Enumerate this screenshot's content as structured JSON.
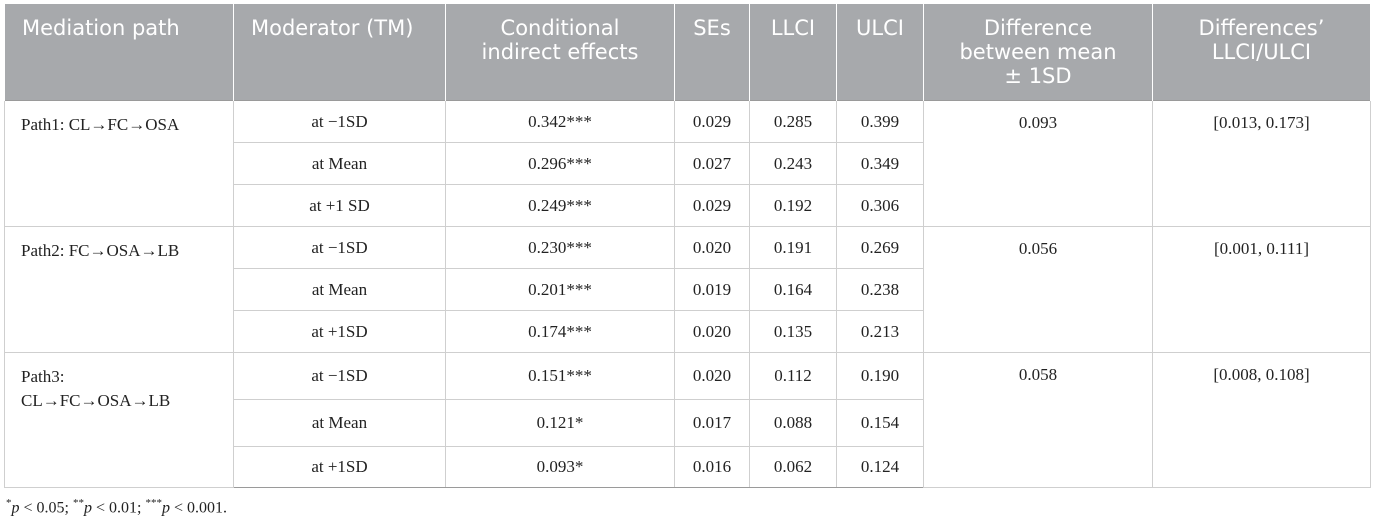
{
  "headers": {
    "mediation_path": "Mediation path",
    "moderator": "Moderator (TM)",
    "cie_line1": "Conditional",
    "cie_line2": "indirect effects",
    "ses": "SEs",
    "llci": "LLCI",
    "ulci": "ULCI",
    "diff_line1": "Difference",
    "diff_line2": "between mean",
    "diff_line3": "± 1SD",
    "dci_line1": "Differences’",
    "dci_line2": "LLCI/ULCI"
  },
  "groups": [
    {
      "path_line1": "Path1: CL→FC→OSA",
      "path_line2": "",
      "difference": "0.093",
      "diff_ci": "[0.013, 0.173]",
      "rows": [
        {
          "moderator": "at −1SD",
          "effect": "0.342***",
          "se": "0.029",
          "llci": "0.285",
          "ulci": "0.399"
        },
        {
          "moderator": "at Mean",
          "effect": "0.296***",
          "se": "0.027",
          "llci": "0.243",
          "ulci": "0.349"
        },
        {
          "moderator": "at +1 SD",
          "effect": "0.249***",
          "se": "0.029",
          "llci": "0.192",
          "ulci": "0.306"
        }
      ]
    },
    {
      "path_line1": "Path2: FC→OSA→LB",
      "path_line2": "",
      "difference": "0.056",
      "diff_ci": "[0.001, 0.111]",
      "rows": [
        {
          "moderator": "at −1SD",
          "effect": "0.230***",
          "se": "0.020",
          "llci": "0.191",
          "ulci": "0.269"
        },
        {
          "moderator": "at Mean",
          "effect": "0.201***",
          "se": "0.019",
          "llci": "0.164",
          "ulci": "0.238"
        },
        {
          "moderator": "at +1SD",
          "effect": "0.174***",
          "se": "0.020",
          "llci": "0.135",
          "ulci": "0.213"
        }
      ]
    },
    {
      "path_line1": "Path3:",
      "path_line2": "CL→FC→OSA→LB",
      "difference": "0.058",
      "diff_ci": "[0.008, 0.108]",
      "rows": [
        {
          "moderator": "at −1SD",
          "effect": "0.151***",
          "se": "0.020",
          "llci": "0.112",
          "ulci": "0.190"
        },
        {
          "moderator": "at Mean",
          "effect": "0.121*",
          "se": "0.017",
          "llci": "0.088",
          "ulci": "0.154"
        },
        {
          "moderator": "at +1SD",
          "effect": "0.093*",
          "se": "0.016",
          "llci": "0.062",
          "ulci": "0.124"
        }
      ]
    }
  ],
  "footnote": {
    "s1": "*",
    "p1": "p",
    "t1": " < 0.05; ",
    "s2": "**",
    "p2": "p",
    "t2": " < 0.01; ",
    "s3": "***",
    "p3": "p",
    "t3": " < 0.001."
  }
}
